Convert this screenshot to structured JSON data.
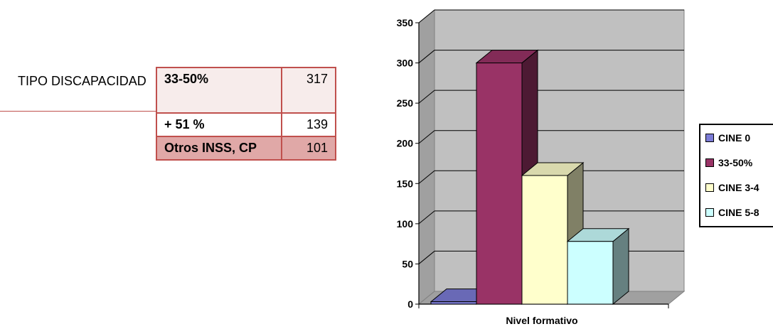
{
  "table": {
    "row_label": "TIPO DISCAPACIDAD",
    "rows": [
      {
        "label": "33-50%",
        "value": "317"
      },
      {
        "label": "+ 51 %",
        "value": "139"
      },
      {
        "label": "Otros INSS, CP",
        "value": "101"
      }
    ]
  },
  "chart_data": {
    "type": "bar",
    "xlabel": "Nivel formativo",
    "ylabel": "",
    "ylim": [
      0,
      350
    ],
    "yticks": [
      "0",
      "50",
      "100",
      "150",
      "200",
      "250",
      "300",
      "350"
    ],
    "grid": true,
    "legend_position": "right",
    "series": [
      {
        "name": "CINE 0",
        "value": 3,
        "color": "#7b7bd6"
      },
      {
        "name": "33-50%",
        "value": 300,
        "color": "#993366"
      },
      {
        "name": "CINE 3-4",
        "value": 160,
        "color": "#ffffcc"
      },
      {
        "name": "CINE 5-8",
        "value": 78,
        "color": "#ccffff"
      }
    ]
  }
}
